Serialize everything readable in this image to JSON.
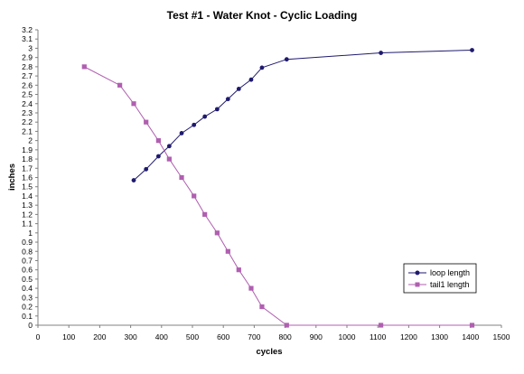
{
  "chart_data": {
    "type": "line",
    "title": "Test #1 - Water Knot - Cyclic Loading",
    "xlabel": "cycles",
    "ylabel": "inches",
    "xlim": [
      0,
      1500
    ],
    "ylim": [
      0,
      3.2
    ],
    "xticks": [
      0,
      100,
      200,
      300,
      400,
      500,
      600,
      700,
      800,
      900,
      1000,
      1100,
      1200,
      1300,
      1400,
      1500
    ],
    "yticks": [
      0,
      0.1,
      0.2,
      0.3,
      0.4,
      0.5,
      0.6,
      0.7,
      0.8,
      0.9,
      1,
      1.1,
      1.2,
      1.3,
      1.4,
      1.5,
      1.6,
      1.7,
      1.8,
      1.9,
      2,
      2.1,
      2.2,
      2.3,
      2.4,
      2.5,
      2.6,
      2.7,
      2.8,
      2.9,
      3,
      3.1,
      3.2
    ],
    "grid": false,
    "legend_position": "bottom-right",
    "series": [
      {
        "name": "loop length",
        "color": "#1f1a6e",
        "marker": "circle",
        "x": [
          310,
          350,
          390,
          425,
          465,
          505,
          540,
          580,
          615,
          650,
          690,
          725,
          805,
          1110,
          1405
        ],
        "y": [
          1.57,
          1.69,
          1.83,
          1.94,
          2.08,
          2.17,
          2.26,
          2.34,
          2.45,
          2.56,
          2.66,
          2.79,
          2.88,
          2.95,
          2.98
        ]
      },
      {
        "name": "tail1 length",
        "color": "#b05fb0",
        "marker": "square",
        "x": [
          150,
          265,
          310,
          350,
          390,
          425,
          465,
          505,
          540,
          580,
          615,
          650,
          690,
          725,
          805,
          1110,
          1405
        ],
        "y": [
          2.8,
          2.6,
          2.4,
          2.2,
          2.0,
          1.8,
          1.6,
          1.4,
          1.2,
          1.0,
          0.8,
          0.6,
          0.4,
          0.2,
          0.0,
          0.0,
          0.0
        ]
      }
    ]
  }
}
